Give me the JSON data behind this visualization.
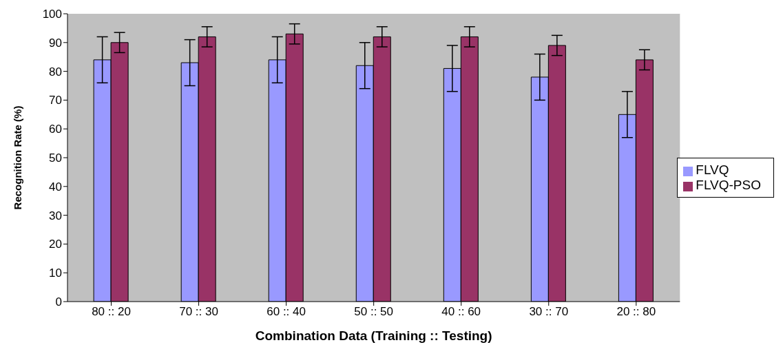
{
  "chart_data": {
    "type": "bar",
    "xlabel": "Combination Data (Training :: Testing)",
    "ylabel": "Recognition Rate (%)",
    "categories": [
      "80 :: 20",
      "70 :: 30",
      "60 :: 40",
      "50 :: 50",
      "40 :: 60",
      "30 :: 70",
      "20 :: 80"
    ],
    "series": [
      {
        "name": "FLVQ",
        "color": "#9999ff",
        "values": [
          84,
          83,
          84,
          82,
          81,
          78,
          65
        ],
        "errors": [
          8,
          8,
          8,
          8,
          8,
          8,
          8
        ]
      },
      {
        "name": "FLVQ-PSO",
        "color": "#993366",
        "values": [
          90,
          92,
          93,
          92,
          92,
          89,
          84
        ],
        "errors": [
          3.5,
          3.5,
          3.5,
          3.5,
          3.5,
          3.5,
          3.5
        ]
      }
    ],
    "ylim": [
      0,
      100
    ],
    "yticks": [
      0,
      10,
      20,
      30,
      40,
      50,
      60,
      70,
      80,
      90,
      100
    ],
    "legend": "right",
    "grid": false
  }
}
